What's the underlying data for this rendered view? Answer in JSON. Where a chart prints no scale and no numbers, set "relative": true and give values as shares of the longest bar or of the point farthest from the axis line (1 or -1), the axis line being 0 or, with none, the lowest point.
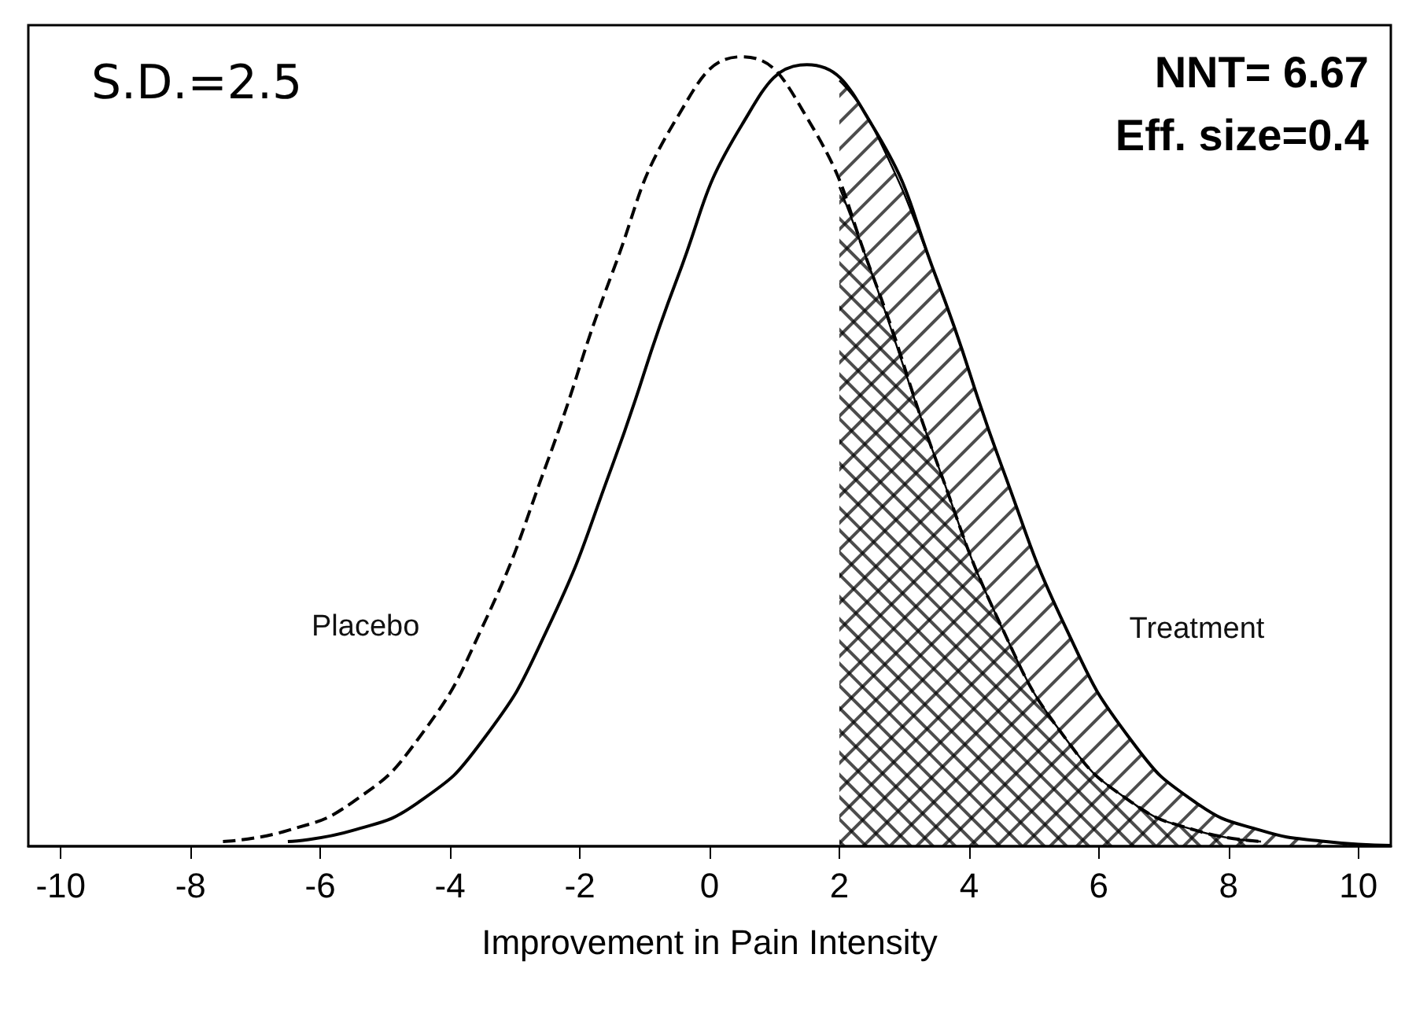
{
  "chart_data": {
    "type": "line",
    "relative": true,
    "xlabel": "Improvement in Pain Intensity",
    "xlim": [
      -10.5,
      10.5
    ],
    "xticks": [
      -10,
      -8,
      -6,
      -4,
      -2,
      0,
      2,
      4,
      6,
      8,
      10
    ],
    "grid": false,
    "legend": false,
    "tick_labels": "x",
    "marker": "none",
    "annotations": [
      "S.D.=2.5",
      "NNT= 6.67",
      "Eff. size=0.4"
    ],
    "series": [
      {
        "name": "Placebo",
        "color": "#000000",
        "line_style": "dashed",
        "x": [
          -7.5,
          -6.5,
          -5.5,
          -4.5,
          -3.5,
          -2.5,
          -1.5,
          -0.5,
          0.5,
          1.5,
          2.5,
          3.5,
          4.5,
          5.5,
          6.5,
          7.5,
          8.5
        ],
        "values": [
          0.006,
          0.02,
          0.056,
          0.135,
          0.278,
          0.487,
          0.726,
          0.923,
          1,
          0.923,
          0.726,
          0.487,
          0.278,
          0.135,
          0.056,
          0.02,
          0.006
        ]
      },
      {
        "name": "Treatment",
        "color": "#000000",
        "line_style": "solid",
        "x": [
          -6.5,
          -5.5,
          -4.5,
          -3.5,
          -2.5,
          -1.5,
          -0.5,
          0.5,
          1.5,
          2.5,
          3.5,
          4.5,
          5.5,
          6.5,
          7.5,
          8.5,
          9.5,
          10.5
        ],
        "values": [
          0.006,
          0.02,
          0.055,
          0.134,
          0.275,
          0.482,
          0.719,
          0.914,
          0.99,
          0.914,
          0.719,
          0.482,
          0.275,
          0.134,
          0.055,
          0.02,
          0.006,
          0.001
        ]
      },
      {
        "type": "area",
        "color": "#000000",
        "x": [
          2,
          2.5,
          3.5,
          4.5,
          5.5,
          6.5,
          7.5,
          8.5
        ],
        "values": [
          0.835,
          0.726,
          0.487,
          0.278,
          0.135,
          0.056,
          0.02,
          0.006
        ]
      },
      {
        "type": "area",
        "color": "#000000",
        "x": [
          2,
          2.5,
          3.5,
          4.5,
          5.5,
          6.5,
          7.5,
          8.5,
          9.5,
          10.5
        ],
        "values": [
          0.97,
          0.914,
          0.719,
          0.482,
          0.275,
          0.134,
          0.055,
          0.02,
          0.006,
          0.001
        ]
      }
    ]
  }
}
